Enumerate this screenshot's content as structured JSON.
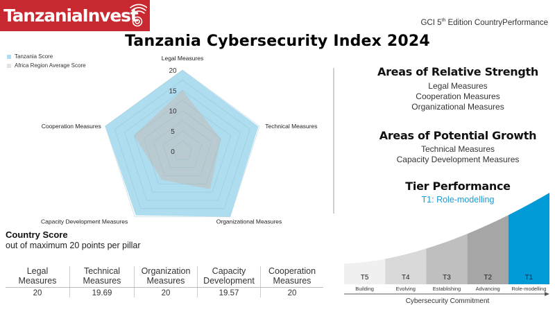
{
  "header": {
    "logo_text": "TanzaniaInvest",
    "logo_icon": "wifi-signal-icon",
    "gci_caption_pre": "GCI 5",
    "gci_caption_sup": "th",
    "gci_caption_post": " Edition CountryPerformance",
    "title": "Tanzania Cybersecurity Index 2024"
  },
  "colors": {
    "brand_red": "#c8282f",
    "tanzania_fill": "#aeddef",
    "africa_fill": "#bcc4c7",
    "tier_blue": "#009ad6",
    "tier_grays": [
      "#f0f0f0",
      "#d9d9d9",
      "#bfbfbf",
      "#a6a6a6"
    ]
  },
  "chart_data": {
    "type": "radar",
    "title": "",
    "axes": [
      "Legal Measures",
      "Technical Measures",
      "Organizational Measures",
      "Capacity Development Measures",
      "Cooperation Measures"
    ],
    "ticks": [
      0,
      5,
      10,
      15,
      20
    ],
    "range": [
      0,
      20
    ],
    "legend_placement": "top-left",
    "series": [
      {
        "name": "Tanzania Score",
        "values": [
          20,
          19.69,
          20,
          19.57,
          20
        ]
      },
      {
        "name": "Africa Region Average Score",
        "values": [
          15,
          9.9,
          11.6,
          8.7,
          12.6
        ]
      }
    ]
  },
  "country_score": {
    "title": "Country Score",
    "subtitle": "out of maximum 20 points per pillar",
    "columns": [
      {
        "line1": "Legal",
        "line2": "Measures",
        "value": "20"
      },
      {
        "line1": "Technical",
        "line2": "Measures",
        "value": "19.69"
      },
      {
        "line1": "Organization",
        "line2": "Measures",
        "value": "20"
      },
      {
        "line1": "Capacity",
        "line2": "Development",
        "value": "19.57"
      },
      {
        "line1": "Cooperation",
        "line2": "Measures",
        "value": "20"
      }
    ]
  },
  "right_panel": {
    "strength_title": "Areas of Relative Strength",
    "strength_items": [
      "Legal Measures",
      "Cooperation Measures",
      "Organizational Measures"
    ],
    "growth_title": "Areas of Potential Growth",
    "growth_items": [
      "Technical Measures",
      "Capacity Development Measures"
    ],
    "tier_title": "Tier Performance",
    "tier_subtitle": "T1: Role-modelling"
  },
  "tiers": {
    "items": [
      {
        "code": "T5",
        "name": "Building"
      },
      {
        "code": "T4",
        "name": "Evolving"
      },
      {
        "code": "T3",
        "name": "Establishing"
      },
      {
        "code": "T2",
        "name": "Advancing"
      },
      {
        "code": "T1",
        "name": "Role-modelling"
      }
    ],
    "highlighted": "T1",
    "axis_label": "Cybersecurity Commitment"
  }
}
